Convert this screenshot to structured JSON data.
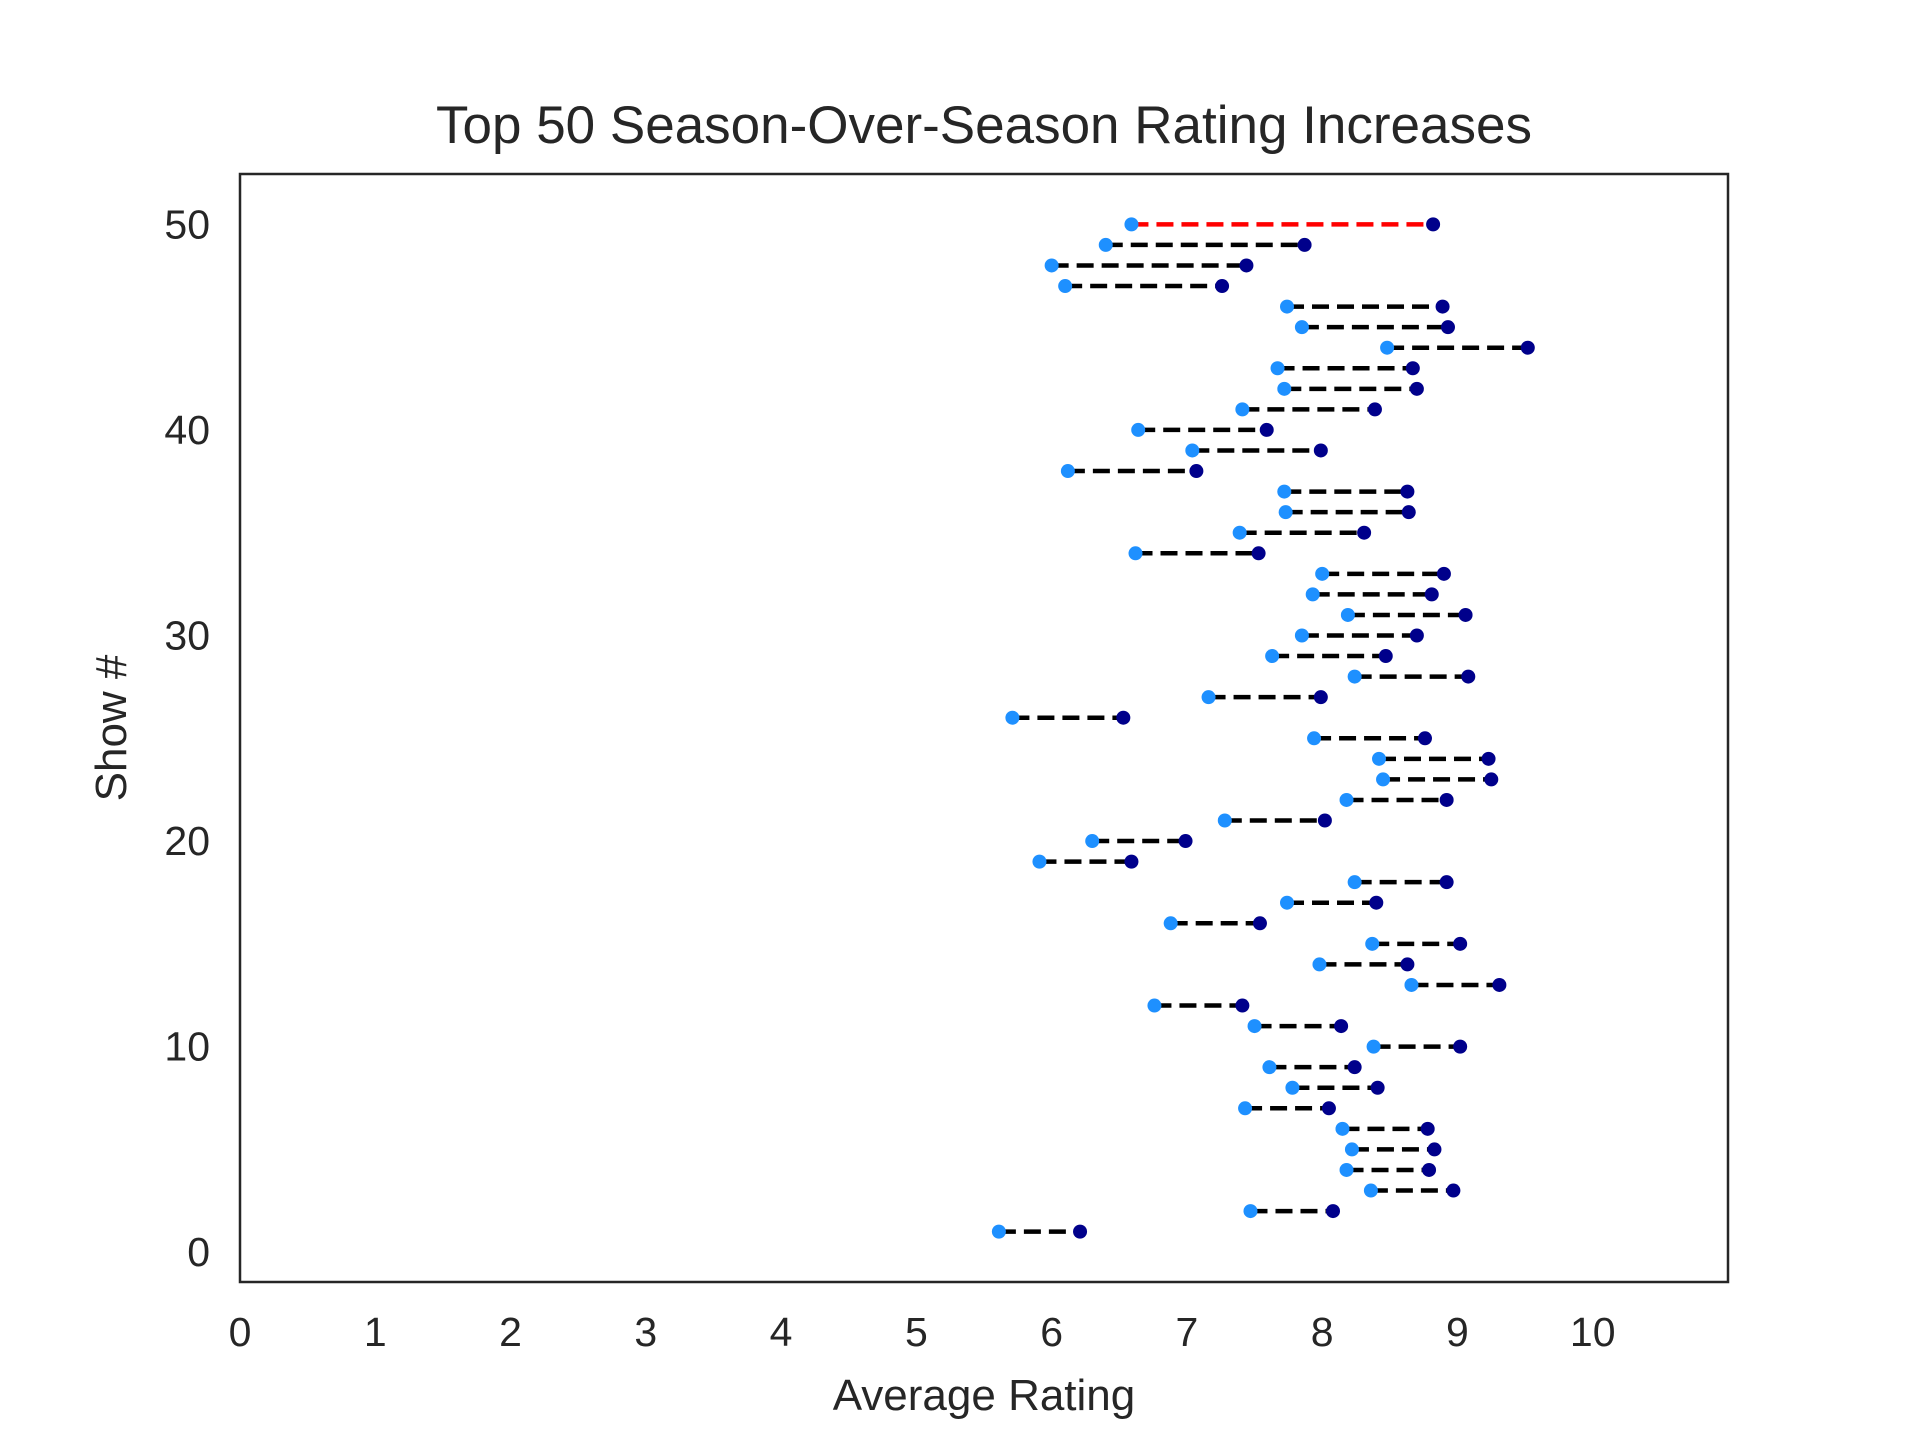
{
  "chart_data": {
    "type": "dumbbell",
    "title": "Top 50 Season-Over-Season Rating Increases",
    "xlabel": "Average Rating",
    "ylabel": "Show #",
    "xlim": [
      0,
      11
    ],
    "ylim": [
      -1.45,
      52.45
    ],
    "xticks": [
      "0",
      "1",
      "2",
      "3",
      "4",
      "5",
      "6",
      "7",
      "8",
      "9",
      "10"
    ],
    "yticks": [
      "0",
      "10",
      "20",
      "30",
      "40",
      "50"
    ],
    "grid": false,
    "colors": {
      "start": "#1e90ff",
      "end": "#00008b",
      "line": "#000000",
      "highlight": "#ff0000"
    },
    "highlight_show": 50,
    "shows": [
      1,
      2,
      3,
      4,
      5,
      6,
      7,
      8,
      9,
      10,
      11,
      12,
      13,
      14,
      15,
      16,
      17,
      18,
      19,
      20,
      21,
      22,
      23,
      24,
      25,
      26,
      27,
      28,
      29,
      30,
      31,
      32,
      33,
      34,
      35,
      36,
      37,
      38,
      39,
      40,
      41,
      42,
      43,
      44,
      45,
      46,
      47,
      48,
      49,
      50
    ],
    "start_rating": [
      5.61,
      7.47,
      8.36,
      8.18,
      8.22,
      8.15,
      7.43,
      7.78,
      7.61,
      8.38,
      7.5,
      6.76,
      8.66,
      7.98,
      8.37,
      6.88,
      7.74,
      8.24,
      5.91,
      6.3,
      7.28,
      8.18,
      8.45,
      8.42,
      7.94,
      5.71,
      7.16,
      8.24,
      7.63,
      7.85,
      8.19,
      7.93,
      8.0,
      6.62,
      7.39,
      7.73,
      7.72,
      6.12,
      7.04,
      6.64,
      7.41,
      7.72,
      7.67,
      8.48,
      7.85,
      7.74,
      6.1,
      6.0,
      6.4,
      6.59
    ],
    "end_rating": [
      6.21,
      8.08,
      8.97,
      8.79,
      8.83,
      8.78,
      8.05,
      8.41,
      8.24,
      9.02,
      8.14,
      7.41,
      9.31,
      8.63,
      9.02,
      7.54,
      8.4,
      8.92,
      6.59,
      6.99,
      8.02,
      8.92,
      9.25,
      9.23,
      8.76,
      6.53,
      7.99,
      9.08,
      8.47,
      8.7,
      9.06,
      8.81,
      8.9,
      7.53,
      8.31,
      8.64,
      8.63,
      7.07,
      7.99,
      7.59,
      8.39,
      8.7,
      8.67,
      9.52,
      8.93,
      8.89,
      7.26,
      7.44,
      7.87,
      8.82
    ]
  }
}
